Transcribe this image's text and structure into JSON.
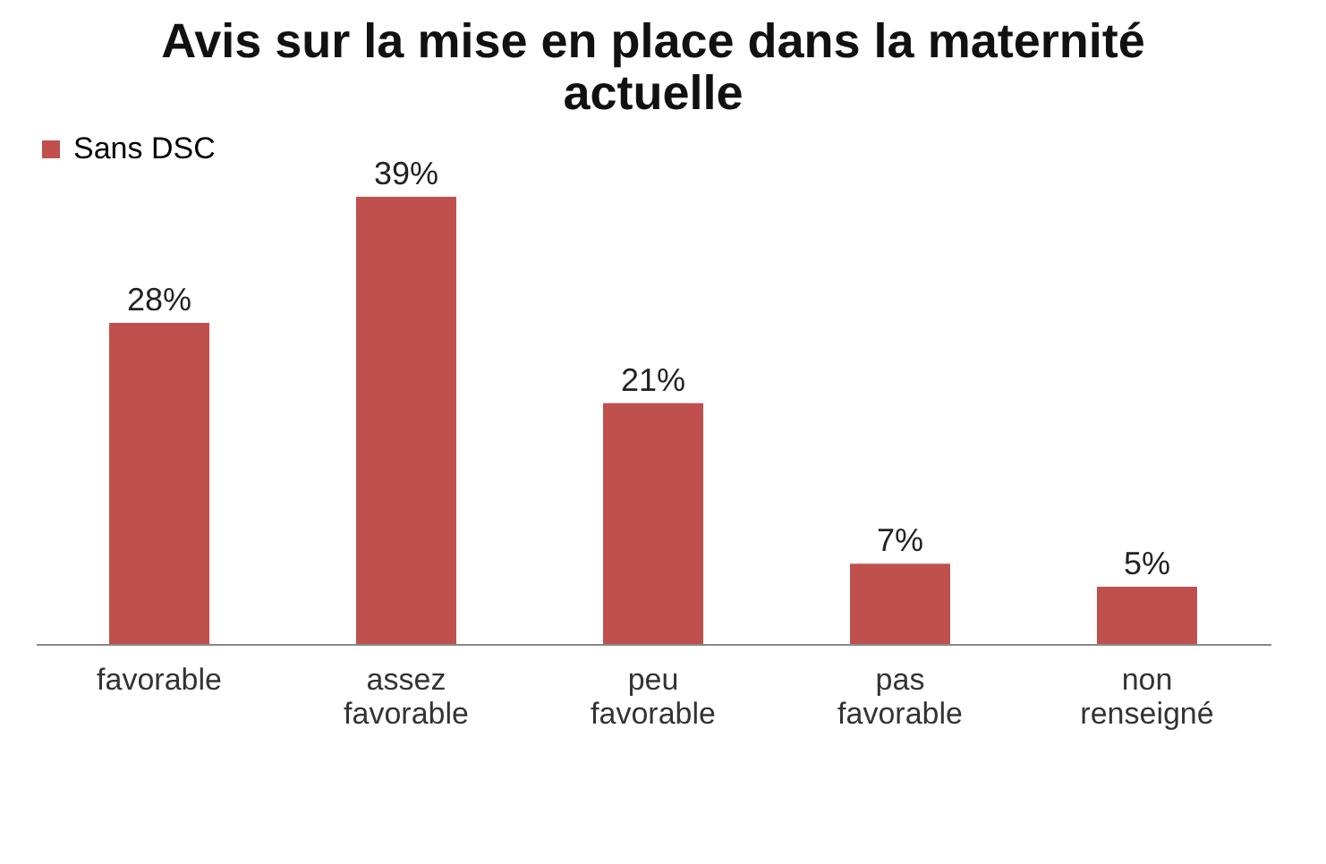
{
  "chart_data": {
    "type": "bar",
    "title": "Avis sur la mise en place dans la maternité actuelle",
    "categories": [
      "favorable",
      "assez favorable",
      "peu favorable",
      "pas favorable",
      "non renseigné"
    ],
    "series": [
      {
        "name": "Sans DSC",
        "color": "#c0504d",
        "values": [
          28,
          39,
          21,
          7,
          5
        ],
        "value_labels": [
          "28%",
          "39%",
          "21%",
          "7%",
          "5%"
        ]
      }
    ],
    "legend": "top",
    "grid": false
  }
}
